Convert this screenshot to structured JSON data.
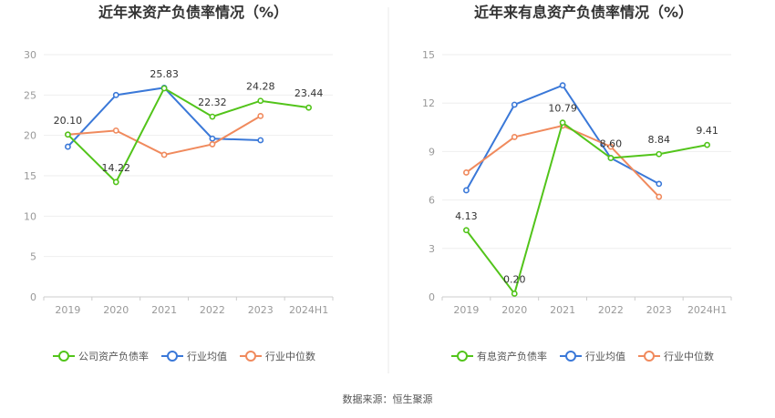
{
  "source_text": "数据来源：恒生聚源",
  "series_styles": [
    {
      "color": "#52c41a",
      "fill": "#ffffff"
    },
    {
      "color": "#3a78d8",
      "fill": "#ffffff"
    },
    {
      "color": "#f08a5d",
      "fill": "#ffffff"
    }
  ],
  "chart_data": [
    {
      "type": "line",
      "title": "近年来资产负债率情况（%）",
      "x": [
        "2019",
        "2020",
        "2021",
        "2022",
        "2023",
        "2024H1"
      ],
      "ylim": [
        0,
        30
      ],
      "yticks": [
        0,
        5,
        10,
        15,
        20,
        25,
        30
      ],
      "grid": true,
      "legend_position": "bottom",
      "series": [
        {
          "name": "公司资产负债率",
          "values": [
            20.1,
            14.22,
            25.83,
            22.32,
            24.28,
            23.44
          ],
          "labels": [
            "20.10",
            "14.22",
            "25.83",
            "22.32",
            "24.28",
            "23.44"
          ]
        },
        {
          "name": "行业均值",
          "values": [
            18.6,
            25.0,
            25.9,
            19.6,
            19.4,
            null
          ]
        },
        {
          "name": "行业中位数",
          "values": [
            20.1,
            20.6,
            17.6,
            18.9,
            22.4,
            null
          ]
        }
      ]
    },
    {
      "type": "line",
      "title": "近年来有息资产负债率情况（%）",
      "x": [
        "2019",
        "2020",
        "2021",
        "2022",
        "2023",
        "2024H1"
      ],
      "ylim": [
        0,
        15
      ],
      "yticks": [
        0,
        3,
        6,
        9,
        12,
        15
      ],
      "grid": true,
      "legend_position": "bottom",
      "series": [
        {
          "name": "有息资产负债率",
          "values": [
            4.13,
            0.2,
            10.79,
            8.6,
            8.84,
            9.41
          ],
          "labels": [
            "4.13",
            "0.20",
            "10.79",
            "8.60",
            "8.84",
            "9.41"
          ]
        },
        {
          "name": "行业均值",
          "values": [
            6.6,
            11.9,
            13.1,
            8.6,
            7.0,
            null
          ]
        },
        {
          "name": "行业中位数",
          "values": [
            7.7,
            9.9,
            10.6,
            9.3,
            6.2,
            null
          ]
        }
      ]
    }
  ]
}
